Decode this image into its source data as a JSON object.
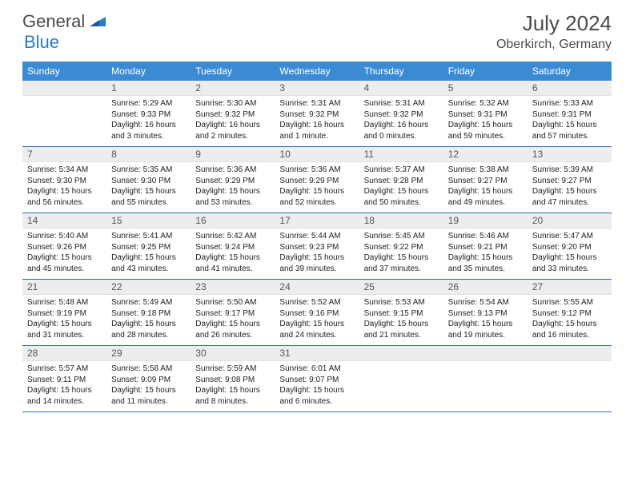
{
  "brand": {
    "name1": "General",
    "name2": "Blue",
    "mark_color": "#2c7ac4"
  },
  "title": "July 2024",
  "location": "Oberkirch, Germany",
  "colors": {
    "header_bg": "#3b8bd4",
    "header_text": "#ffffff",
    "daynum_bg": "#ededed",
    "cell_border": "#2c6bb0",
    "text": "#222222"
  },
  "weekdays": [
    "Sunday",
    "Monday",
    "Tuesday",
    "Wednesday",
    "Thursday",
    "Friday",
    "Saturday"
  ],
  "weeks": [
    [
      null,
      {
        "n": "1",
        "sr": "Sunrise: 5:29 AM",
        "ss": "Sunset: 9:33 PM",
        "d1": "Daylight: 16 hours",
        "d2": "and 3 minutes."
      },
      {
        "n": "2",
        "sr": "Sunrise: 5:30 AM",
        "ss": "Sunset: 9:32 PM",
        "d1": "Daylight: 16 hours",
        "d2": "and 2 minutes."
      },
      {
        "n": "3",
        "sr": "Sunrise: 5:31 AM",
        "ss": "Sunset: 9:32 PM",
        "d1": "Daylight: 16 hours",
        "d2": "and 1 minute."
      },
      {
        "n": "4",
        "sr": "Sunrise: 5:31 AM",
        "ss": "Sunset: 9:32 PM",
        "d1": "Daylight: 16 hours",
        "d2": "and 0 minutes."
      },
      {
        "n": "5",
        "sr": "Sunrise: 5:32 AM",
        "ss": "Sunset: 9:31 PM",
        "d1": "Daylight: 15 hours",
        "d2": "and 59 minutes."
      },
      {
        "n": "6",
        "sr": "Sunrise: 5:33 AM",
        "ss": "Sunset: 9:31 PM",
        "d1": "Daylight: 15 hours",
        "d2": "and 57 minutes."
      }
    ],
    [
      {
        "n": "7",
        "sr": "Sunrise: 5:34 AM",
        "ss": "Sunset: 9:30 PM",
        "d1": "Daylight: 15 hours",
        "d2": "and 56 minutes."
      },
      {
        "n": "8",
        "sr": "Sunrise: 5:35 AM",
        "ss": "Sunset: 9:30 PM",
        "d1": "Daylight: 15 hours",
        "d2": "and 55 minutes."
      },
      {
        "n": "9",
        "sr": "Sunrise: 5:36 AM",
        "ss": "Sunset: 9:29 PM",
        "d1": "Daylight: 15 hours",
        "d2": "and 53 minutes."
      },
      {
        "n": "10",
        "sr": "Sunrise: 5:36 AM",
        "ss": "Sunset: 9:29 PM",
        "d1": "Daylight: 15 hours",
        "d2": "and 52 minutes."
      },
      {
        "n": "11",
        "sr": "Sunrise: 5:37 AM",
        "ss": "Sunset: 9:28 PM",
        "d1": "Daylight: 15 hours",
        "d2": "and 50 minutes."
      },
      {
        "n": "12",
        "sr": "Sunrise: 5:38 AM",
        "ss": "Sunset: 9:27 PM",
        "d1": "Daylight: 15 hours",
        "d2": "and 49 minutes."
      },
      {
        "n": "13",
        "sr": "Sunrise: 5:39 AM",
        "ss": "Sunset: 9:27 PM",
        "d1": "Daylight: 15 hours",
        "d2": "and 47 minutes."
      }
    ],
    [
      {
        "n": "14",
        "sr": "Sunrise: 5:40 AM",
        "ss": "Sunset: 9:26 PM",
        "d1": "Daylight: 15 hours",
        "d2": "and 45 minutes."
      },
      {
        "n": "15",
        "sr": "Sunrise: 5:41 AM",
        "ss": "Sunset: 9:25 PM",
        "d1": "Daylight: 15 hours",
        "d2": "and 43 minutes."
      },
      {
        "n": "16",
        "sr": "Sunrise: 5:42 AM",
        "ss": "Sunset: 9:24 PM",
        "d1": "Daylight: 15 hours",
        "d2": "and 41 minutes."
      },
      {
        "n": "17",
        "sr": "Sunrise: 5:44 AM",
        "ss": "Sunset: 9:23 PM",
        "d1": "Daylight: 15 hours",
        "d2": "and 39 minutes."
      },
      {
        "n": "18",
        "sr": "Sunrise: 5:45 AM",
        "ss": "Sunset: 9:22 PM",
        "d1": "Daylight: 15 hours",
        "d2": "and 37 minutes."
      },
      {
        "n": "19",
        "sr": "Sunrise: 5:46 AM",
        "ss": "Sunset: 9:21 PM",
        "d1": "Daylight: 15 hours",
        "d2": "and 35 minutes."
      },
      {
        "n": "20",
        "sr": "Sunrise: 5:47 AM",
        "ss": "Sunset: 9:20 PM",
        "d1": "Daylight: 15 hours",
        "d2": "and 33 minutes."
      }
    ],
    [
      {
        "n": "21",
        "sr": "Sunrise: 5:48 AM",
        "ss": "Sunset: 9:19 PM",
        "d1": "Daylight: 15 hours",
        "d2": "and 31 minutes."
      },
      {
        "n": "22",
        "sr": "Sunrise: 5:49 AM",
        "ss": "Sunset: 9:18 PM",
        "d1": "Daylight: 15 hours",
        "d2": "and 28 minutes."
      },
      {
        "n": "23",
        "sr": "Sunrise: 5:50 AM",
        "ss": "Sunset: 9:17 PM",
        "d1": "Daylight: 15 hours",
        "d2": "and 26 minutes."
      },
      {
        "n": "24",
        "sr": "Sunrise: 5:52 AM",
        "ss": "Sunset: 9:16 PM",
        "d1": "Daylight: 15 hours",
        "d2": "and 24 minutes."
      },
      {
        "n": "25",
        "sr": "Sunrise: 5:53 AM",
        "ss": "Sunset: 9:15 PM",
        "d1": "Daylight: 15 hours",
        "d2": "and 21 minutes."
      },
      {
        "n": "26",
        "sr": "Sunrise: 5:54 AM",
        "ss": "Sunset: 9:13 PM",
        "d1": "Daylight: 15 hours",
        "d2": "and 19 minutes."
      },
      {
        "n": "27",
        "sr": "Sunrise: 5:55 AM",
        "ss": "Sunset: 9:12 PM",
        "d1": "Daylight: 15 hours",
        "d2": "and 16 minutes."
      }
    ],
    [
      {
        "n": "28",
        "sr": "Sunrise: 5:57 AM",
        "ss": "Sunset: 9:11 PM",
        "d1": "Daylight: 15 hours",
        "d2": "and 14 minutes."
      },
      {
        "n": "29",
        "sr": "Sunrise: 5:58 AM",
        "ss": "Sunset: 9:09 PM",
        "d1": "Daylight: 15 hours",
        "d2": "and 11 minutes."
      },
      {
        "n": "30",
        "sr": "Sunrise: 5:59 AM",
        "ss": "Sunset: 9:08 PM",
        "d1": "Daylight: 15 hours",
        "d2": "and 8 minutes."
      },
      {
        "n": "31",
        "sr": "Sunrise: 6:01 AM",
        "ss": "Sunset: 9:07 PM",
        "d1": "Daylight: 15 hours",
        "d2": "and 6 minutes."
      },
      null,
      null,
      null
    ]
  ]
}
